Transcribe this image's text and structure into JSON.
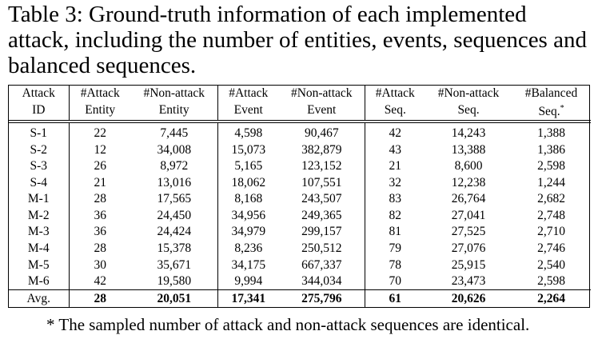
{
  "caption": "Table 3: Ground-truth information of each implemented attack, including the number of entities, events, sequences and balanced sequences.",
  "headers": [
    [
      "Attack",
      "ID"
    ],
    [
      "#Attack",
      "Entity"
    ],
    [
      "#Non-attack",
      "Entity"
    ],
    [
      "#Attack",
      "Event"
    ],
    [
      "#Non-attack",
      "Event"
    ],
    [
      "#Attack",
      "Seq."
    ],
    [
      "#Non-attack",
      "Seq."
    ],
    [
      "#Balanced",
      "Seq."
    ]
  ],
  "header_note_mark": "*",
  "rows": [
    [
      "S-1",
      "22",
      "7,445",
      "4,598",
      "90,467",
      "42",
      "14,243",
      "1,388"
    ],
    [
      "S-2",
      "12",
      "34,008",
      "15,073",
      "382,879",
      "43",
      "13,388",
      "1,386"
    ],
    [
      "S-3",
      "26",
      "8,972",
      "5,165",
      "123,152",
      "21",
      "8,600",
      "2,598"
    ],
    [
      "S-4",
      "21",
      "13,016",
      "18,062",
      "107,551",
      "32",
      "12,238",
      "1,244"
    ],
    [
      "M-1",
      "28",
      "17,565",
      "8,168",
      "243,507",
      "83",
      "26,764",
      "2,682"
    ],
    [
      "M-2",
      "36",
      "24,450",
      "34,956",
      "249,365",
      "82",
      "27,041",
      "2,748"
    ],
    [
      "M-3",
      "36",
      "24,424",
      "34,979",
      "299,157",
      "81",
      "27,525",
      "2,710"
    ],
    [
      "M-4",
      "28",
      "15,378",
      "8,236",
      "250,512",
      "79",
      "27,076",
      "2,746"
    ],
    [
      "M-5",
      "30",
      "35,671",
      "34,175",
      "667,337",
      "78",
      "25,915",
      "2,540"
    ],
    [
      "M-6",
      "42",
      "19,580",
      "9,994",
      "344,034",
      "70",
      "23,473",
      "2,598"
    ]
  ],
  "avg_row": [
    "Avg.",
    "28",
    "20,051",
    "17,341",
    "275,796",
    "61",
    "20,626",
    "2,264"
  ],
  "footnote": "* The sampled number of attack and non-attack sequences are identical."
}
